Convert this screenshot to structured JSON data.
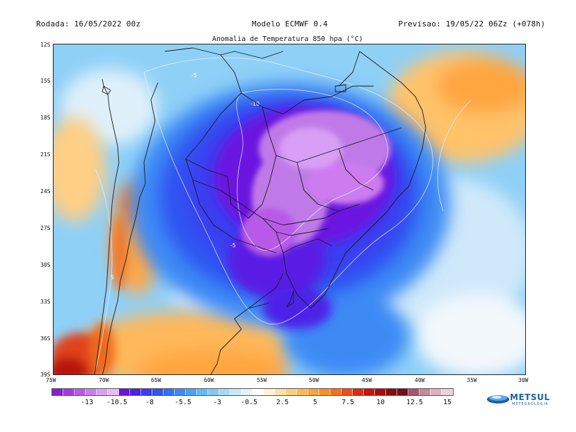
{
  "header": {
    "run": "Rodada: 16/05/2022 00z",
    "model": "Modelo ECMWF 0.4",
    "forecast": "Previsao: 19/05/22 06Zz (+078h)"
  },
  "map": {
    "title": "Anomalia de Temperatura 850 hpa (°C)",
    "latitude_labels": [
      "12S",
      "15S",
      "18S",
      "21S",
      "24S",
      "27S",
      "30S",
      "33S",
      "36S",
      "39S"
    ],
    "longitude_labels": [
      "75W",
      "70W",
      "65W",
      "60W",
      "55W",
      "50W",
      "45W",
      "40W",
      "35W",
      "30W"
    ],
    "contour_labels": [
      "-5",
      "-10",
      "-5",
      "5"
    ]
  },
  "colorbar": {
    "tick_labels": [
      "-13",
      "-10.5",
      "-8",
      "-5.5",
      "-3",
      "-0.5",
      "2.5",
      "5",
      "7.5",
      "10",
      "12.5",
      "15"
    ],
    "colors": [
      "#8a1fd6",
      "#a23be0",
      "#b85ae8",
      "#cc7cef",
      "#dc9ef5",
      "#e8bcf8",
      "#6a12e0",
      "#4d22e8",
      "#3a3cf0",
      "#2f55f2",
      "#3570f4",
      "#3d8af5",
      "#4aa3f6",
      "#63baf7",
      "#80ccf8",
      "#a2dcfa",
      "#c4e9fb",
      "#e2f3fc",
      "#ffffff",
      "#fff3d6",
      "#ffe2a8",
      "#ffcf7c",
      "#ffb957",
      "#ffa23a",
      "#ff8c24",
      "#fb6e18",
      "#f04d12",
      "#e0290e",
      "#c8140c",
      "#a90c0c",
      "#8a0a10",
      "#6e0f1a",
      "#a4566a",
      "#c98899",
      "#ddb3bf",
      "#ecd3da"
    ]
  },
  "branding": {
    "logo": "METSUL",
    "subtitle": "METEOROLOGIA"
  }
}
